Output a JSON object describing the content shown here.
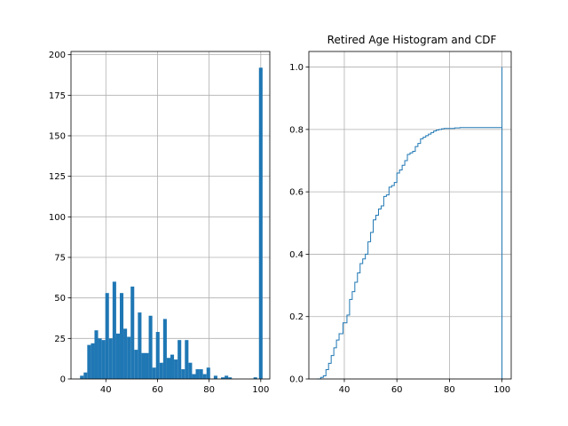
{
  "colors": {
    "bar": "#1f77b4",
    "line": "#1f77b4",
    "grid": "#b0b0b0",
    "axis": "#000000"
  },
  "chart_data": [
    {
      "type": "bar",
      "subtype": "histogram",
      "title": "",
      "xlabel": "",
      "ylabel": "",
      "xlim": [
        26.5,
        103.5
      ],
      "ylim": [
        0,
        202
      ],
      "grid": true,
      "xticks": [
        40,
        60,
        80,
        100
      ],
      "yticks": [
        0,
        25,
        50,
        75,
        100,
        125,
        150,
        175,
        200
      ],
      "bins": [
        {
          "x": 30.0,
          "value": 2
        },
        {
          "x": 31.4,
          "value": 4
        },
        {
          "x": 32.8,
          "value": 21
        },
        {
          "x": 34.2,
          "value": 22
        },
        {
          "x": 35.6,
          "value": 30
        },
        {
          "x": 37.0,
          "value": 25
        },
        {
          "x": 38.4,
          "value": 24
        },
        {
          "x": 39.8,
          "value": 53
        },
        {
          "x": 41.2,
          "value": 25
        },
        {
          "x": 42.6,
          "value": 60
        },
        {
          "x": 44.0,
          "value": 28
        },
        {
          "x": 45.4,
          "value": 53
        },
        {
          "x": 46.8,
          "value": 31
        },
        {
          "x": 48.2,
          "value": 26
        },
        {
          "x": 49.6,
          "value": 57
        },
        {
          "x": 51.0,
          "value": 18
        },
        {
          "x": 52.4,
          "value": 41
        },
        {
          "x": 53.8,
          "value": 16
        },
        {
          "x": 55.2,
          "value": 16
        },
        {
          "x": 56.6,
          "value": 39
        },
        {
          "x": 58.0,
          "value": 7
        },
        {
          "x": 59.4,
          "value": 29
        },
        {
          "x": 60.8,
          "value": 10
        },
        {
          "x": 62.2,
          "value": 37
        },
        {
          "x": 63.6,
          "value": 13
        },
        {
          "x": 65.0,
          "value": 15
        },
        {
          "x": 66.4,
          "value": 12
        },
        {
          "x": 67.8,
          "value": 24
        },
        {
          "x": 69.2,
          "value": 6
        },
        {
          "x": 70.6,
          "value": 24
        },
        {
          "x": 72.0,
          "value": 10
        },
        {
          "x": 73.4,
          "value": 3
        },
        {
          "x": 74.8,
          "value": 6
        },
        {
          "x": 76.2,
          "value": 6
        },
        {
          "x": 77.6,
          "value": 3
        },
        {
          "x": 79.0,
          "value": 7
        },
        {
          "x": 81.8,
          "value": 2
        },
        {
          "x": 84.6,
          "value": 1
        },
        {
          "x": 86.0,
          "value": 2
        },
        {
          "x": 87.4,
          "value": 1
        },
        {
          "x": 97.2,
          "value": 1
        },
        {
          "x": 99.3,
          "value": 192
        }
      ],
      "bin_width": 1.4
    },
    {
      "type": "line",
      "subtype": "step-cdf",
      "title": "Retired Age Histogram and CDF",
      "xlabel": "",
      "ylabel": "",
      "xlim": [
        26.5,
        103.5
      ],
      "ylim": [
        0,
        1.05
      ],
      "grid": true,
      "xticks": [
        40,
        60,
        80,
        100
      ],
      "yticks": [
        0.0,
        0.2,
        0.4,
        0.6,
        0.8,
        1.0
      ],
      "tick_format_decimals": 1,
      "series": [
        {
          "name": "CDF",
          "x": [
            29.5,
            31,
            32,
            33,
            34,
            35,
            36,
            37,
            38,
            39.5,
            41,
            42,
            43,
            44,
            45,
            46,
            47,
            48,
            49,
            50,
            51,
            52,
            53,
            54,
            55,
            56,
            57,
            58,
            59,
            60,
            61,
            62,
            63,
            64,
            65,
            66,
            67,
            68,
            69,
            70,
            71,
            72,
            73,
            74,
            75,
            76,
            77,
            78,
            80,
            82,
            84,
            86,
            88,
            90,
            92,
            94,
            96,
            98,
            99.3,
            100,
            100
          ],
          "y": [
            0.0,
            0.005,
            0.01,
            0.03,
            0.05,
            0.075,
            0.1,
            0.125,
            0.145,
            0.18,
            0.205,
            0.255,
            0.28,
            0.31,
            0.34,
            0.37,
            0.385,
            0.4,
            0.44,
            0.47,
            0.51,
            0.525,
            0.545,
            0.555,
            0.585,
            0.59,
            0.615,
            0.62,
            0.63,
            0.66,
            0.67,
            0.685,
            0.7,
            0.72,
            0.725,
            0.73,
            0.745,
            0.755,
            0.77,
            0.775,
            0.78,
            0.785,
            0.79,
            0.795,
            0.798,
            0.8,
            0.802,
            0.803,
            0.803,
            0.805,
            0.806,
            0.806,
            0.806,
            0.806,
            0.806,
            0.806,
            0.806,
            0.806,
            0.806,
            1.0,
            0.0
          ]
        }
      ]
    }
  ]
}
